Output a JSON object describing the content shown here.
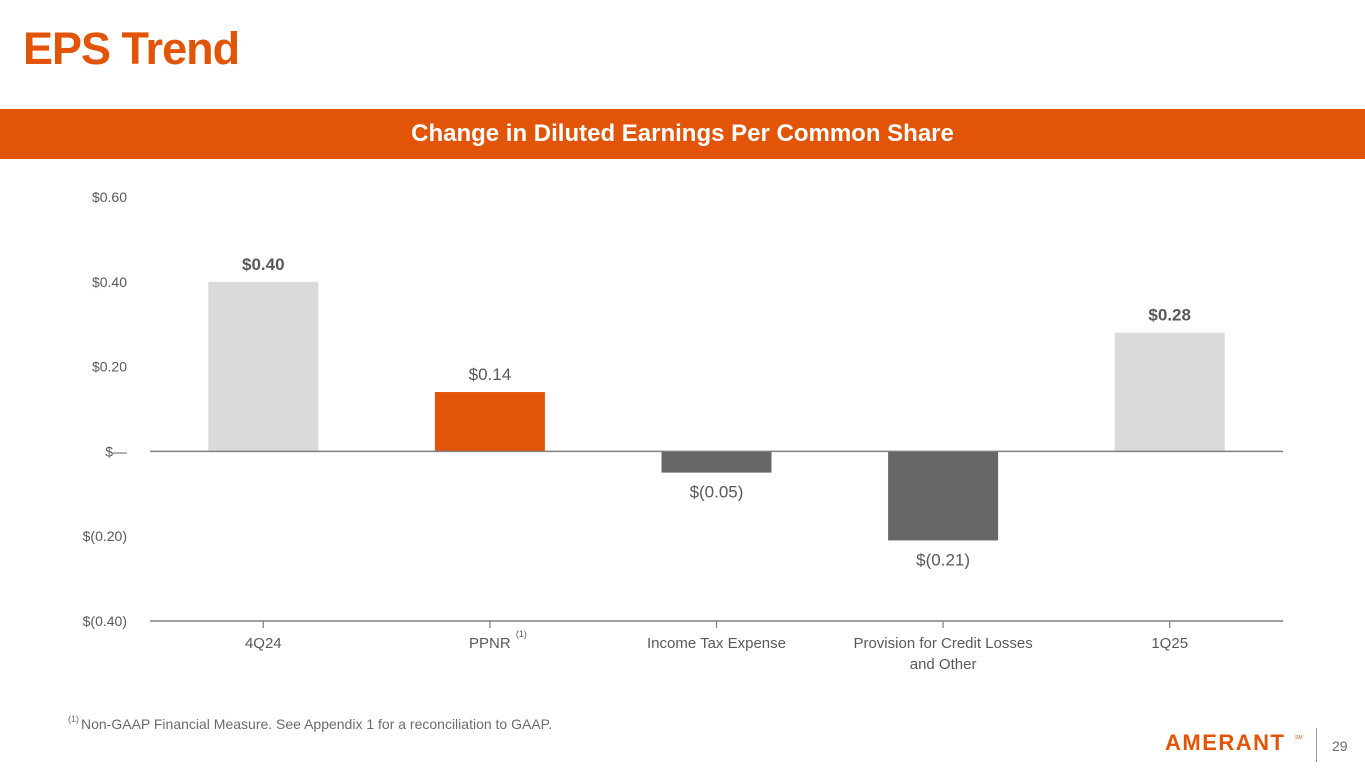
{
  "slide": {
    "title": "EPS Trend",
    "banner": "Change in Diluted Earnings Per Common Share",
    "footnote_marker": "(1)",
    "footnote": "Non-GAAP Financial Measure. See Appendix 1 for a reconciliation to GAAP.",
    "logo_text": "AMERANT",
    "logo_mark": "SM",
    "page_number": "29"
  },
  "colors": {
    "accent": "#e25509",
    "bar_light": "#dadada",
    "bar_dark": "#676767",
    "axis": "#7f7f7f",
    "text": "#595959"
  },
  "chart_data": {
    "type": "bar",
    "subtype": "waterfall",
    "title": "Change in Diluted Earnings Per Common Share",
    "xlabel": "",
    "ylabel": "",
    "categories": [
      "4Q24",
      "PPNR",
      "Income Tax Expense",
      "Provision for Credit Losses and Other",
      "1Q25"
    ],
    "category_lines": [
      [
        "4Q24"
      ],
      [
        "PPNR"
      ],
      [
        "Income Tax Expense"
      ],
      [
        "Provision for Credit Losses",
        "and Other"
      ],
      [
        "1Q25"
      ]
    ],
    "category_superscripts": [
      "",
      "(1)",
      "",
      "",
      ""
    ],
    "values": [
      0.4,
      0.14,
      -0.05,
      -0.21,
      0.28
    ],
    "data_labels": [
      "$0.40",
      "$0.14",
      "$(0.05)",
      "$(0.21)",
      "$0.28"
    ],
    "bar_colors": [
      "#dadada",
      "#e25509",
      "#676767",
      "#676767",
      "#dadada"
    ],
    "label_bold": [
      true,
      false,
      false,
      false,
      true
    ],
    "ylim": [
      -0.4,
      0.6
    ],
    "yticks": [
      0.6,
      0.4,
      0.2,
      0,
      -0.2,
      -0.4
    ],
    "ytick_labels": [
      "$0.60",
      "$0.40",
      "$0.20",
      "$—",
      "$(0.20)",
      "$(0.40)"
    ],
    "grid": false,
    "legend": "none"
  }
}
